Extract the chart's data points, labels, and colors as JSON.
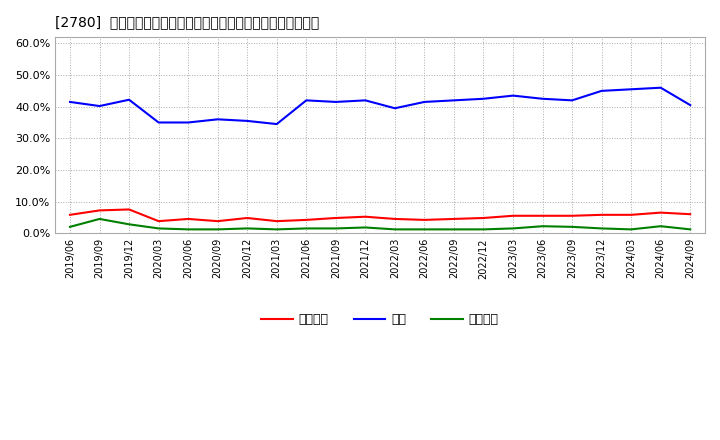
{
  "title": "[2780]  売上債権、在庫、買入債務の総資産に対する比率の推移",
  "dates": [
    "2019/06",
    "2019/09",
    "2019/12",
    "2020/03",
    "2020/06",
    "2020/09",
    "2020/12",
    "2021/03",
    "2021/06",
    "2021/09",
    "2021/12",
    "2022/03",
    "2022/06",
    "2022/09",
    "2022/12",
    "2023/03",
    "2023/06",
    "2023/09",
    "2023/12",
    "2024/03",
    "2024/06",
    "2024/09"
  ],
  "receivables": [
    5.8,
    7.2,
    7.5,
    3.8,
    4.5,
    3.8,
    4.8,
    3.8,
    4.2,
    4.8,
    5.2,
    4.5,
    4.2,
    4.5,
    4.8,
    5.5,
    5.5,
    5.5,
    5.8,
    5.8,
    6.5,
    6.0
  ],
  "inventory": [
    41.5,
    40.2,
    42.2,
    35.0,
    35.0,
    36.0,
    35.5,
    34.5,
    42.0,
    41.5,
    42.0,
    39.5,
    41.5,
    42.0,
    42.5,
    43.5,
    42.5,
    42.0,
    45.0,
    45.5,
    46.0,
    40.5
  ],
  "payables": [
    2.0,
    4.5,
    2.8,
    1.5,
    1.2,
    1.2,
    1.5,
    1.2,
    1.5,
    1.5,
    1.8,
    1.2,
    1.2,
    1.2,
    1.2,
    1.5,
    2.2,
    2.0,
    1.5,
    1.2,
    2.2,
    1.2
  ],
  "receivables_color": "#ff0000",
  "inventory_color": "#0000ff",
  "payables_color": "#008000",
  "ylim": [
    0,
    62
  ],
  "yticks": [
    0,
    10,
    20,
    30,
    40,
    50,
    60
  ],
  "legend_labels": [
    "売上債権",
    "在庫",
    "買入債務"
  ],
  "background_color": "#ffffff",
  "plot_bg_color": "#ffffff"
}
